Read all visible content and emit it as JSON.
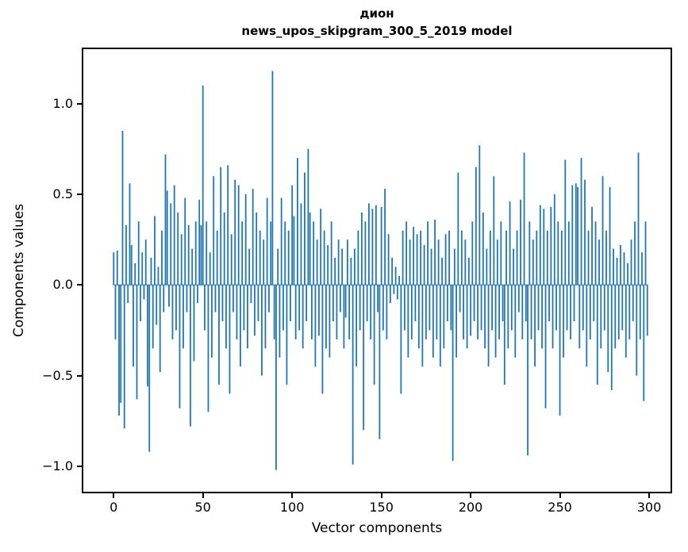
{
  "figure": {
    "title_word": "дион",
    "title_model": "news_upos_skipgram_300_5_2019 model"
  },
  "chart_data": {
    "type": "bar",
    "title": "дион",
    "subtitle": "news_upos_skipgram_300_5_2019 model",
    "xlabel": "Vector components",
    "ylabel": "Components values",
    "xlim": [
      -17,
      312
    ],
    "ylim": [
      -1.14,
      1.3
    ],
    "xticks": [
      0,
      50,
      100,
      150,
      200,
      250,
      300
    ],
    "xtick_labels": [
      "0",
      "50",
      "100",
      "150",
      "200",
      "250",
      "300"
    ],
    "yticks": [
      -1.0,
      -0.5,
      0.0,
      0.5,
      1.0
    ],
    "ytick_labels": [
      "−1.0",
      "−0.5",
      "0.0",
      "0.5",
      "1.0"
    ],
    "n_components": 300,
    "bar_color": "#1f77b4",
    "bar_width": 0.8,
    "values": [
      0.18,
      -0.3,
      0.19,
      -0.72,
      -0.65,
      0.85,
      -0.79,
      0.33,
      -0.1,
      0.56,
      0.22,
      -0.45,
      0.12,
      -0.63,
      0.35,
      -0.2,
      0.18,
      -0.08,
      0.25,
      -0.56,
      -0.92,
      0.15,
      -0.35,
      0.38,
      -0.22,
      0.1,
      -0.48,
      0.3,
      -0.15,
      0.72,
      0.52,
      -0.12,
      0.45,
      -0.3,
      0.55,
      -0.25,
      0.4,
      -0.68,
      0.28,
      -0.35,
      0.48,
      -0.15,
      0.33,
      -0.78,
      0.2,
      -0.42,
      0.35,
      -0.1,
      0.47,
      0.33,
      1.1,
      -0.25,
      0.35,
      -0.7,
      0.18,
      -0.4,
      0.6,
      -0.15,
      0.3,
      -0.55,
      0.65,
      -0.2,
      0.4,
      -0.35,
      0.66,
      -0.6,
      0.28,
      -0.15,
      0.58,
      -0.3,
      0.55,
      -0.45,
      0.35,
      -0.25,
      0.5,
      -0.35,
      0.2,
      -0.1,
      0.53,
      -0.28,
      0.4,
      -0.2,
      0.3,
      -0.5,
      0.25,
      -0.35,
      0.48,
      -0.15,
      0.35,
      1.18,
      -0.3,
      -1.02,
      0.2,
      -0.4,
      0.48,
      -0.25,
      0.35,
      -0.55,
      0.3,
      -0.2,
      0.55,
      0.38,
      -0.3,
      0.7,
      -0.25,
      0.45,
      -0.35,
      0.62,
      -0.2,
      0.75,
      0.4,
      -0.3,
      0.35,
      -0.45,
      0.25,
      -0.28,
      0.42,
      -0.6,
      0.3,
      -0.35,
      0.22,
      -0.4,
      0.35,
      -0.2,
      0.15,
      -0.3,
      0.25,
      -0.15,
      0.2,
      -0.35,
      -0.18,
      0.25,
      -0.3,
      0.15,
      -0.99,
      0.2,
      -0.45,
      0.3,
      -0.25,
      0.4,
      -0.8,
      0.35,
      -0.2,
      0.45,
      -0.3,
      0.42,
      -0.55,
      0.44,
      -0.15,
      -0.85,
      0.43,
      -0.25,
      0.53,
      -0.3,
      0.28,
      -0.1,
      0.15,
      -0.05,
      0.1,
      -0.08,
      0.05,
      -0.6,
      0.3,
      -0.25,
      0.35,
      -0.4,
      0.25,
      -0.3,
      0.32,
      -0.2,
      0.28,
      -0.35,
      0.3,
      -0.45,
      0.22,
      -0.3,
      0.35,
      -0.25,
      0.2,
      -0.4,
      0.36,
      -0.3,
      0.25,
      -0.45,
      0.15,
      -0.35,
      0.28,
      -0.2,
      0.3,
      -0.25,
      -0.97,
      0.2,
      -0.4,
      0.62,
      -0.15,
      0.3,
      -0.3,
      0.25,
      -0.35,
      0.15,
      -0.28,
      0.35,
      -0.2,
      0.65,
      -0.3,
      0.77,
      -0.25,
      0.4,
      -0.35,
      0.2,
      -0.45,
      0.3,
      -0.25,
      0.6,
      -0.4,
      0.25,
      -0.3,
      0.35,
      -0.2,
      -0.55,
      0.3,
      -0.35,
      0.46,
      -0.25,
      0.2,
      -0.4,
      0.3,
      -0.15,
      0.47,
      -0.3,
      0.73,
      -0.2,
      -0.94,
      0.35,
      -0.3,
      0.25,
      -0.45,
      0.3,
      -0.25,
      0.44,
      -0.35,
      0.42,
      -0.68,
      0.3,
      -0.2,
      0.43,
      -0.35,
      0.5,
      -0.25,
      0.35,
      -0.72,
      0.3,
      -0.4,
      0.69,
      -0.25,
      0.35,
      -0.3,
      0.55,
      -0.2,
      0.56,
      0.54,
      -0.35,
      0.7,
      -0.25,
      0.58,
      -0.45,
      0.3,
      -0.3,
      0.43,
      -0.2,
      0.35,
      -0.55,
      0.25,
      -0.35,
      0.6,
      -0.25,
      0.3,
      -0.48,
      0.54,
      -0.58,
      0.2,
      -0.35,
      0.15,
      -0.3,
      0.22,
      -0.25,
      0.18,
      -0.4,
      0.12,
      -0.3,
      0.25,
      -0.2,
      0.35,
      -0.5,
      0.73,
      -0.3,
      0.18,
      -0.64,
      0.35,
      -0.28
    ]
  }
}
